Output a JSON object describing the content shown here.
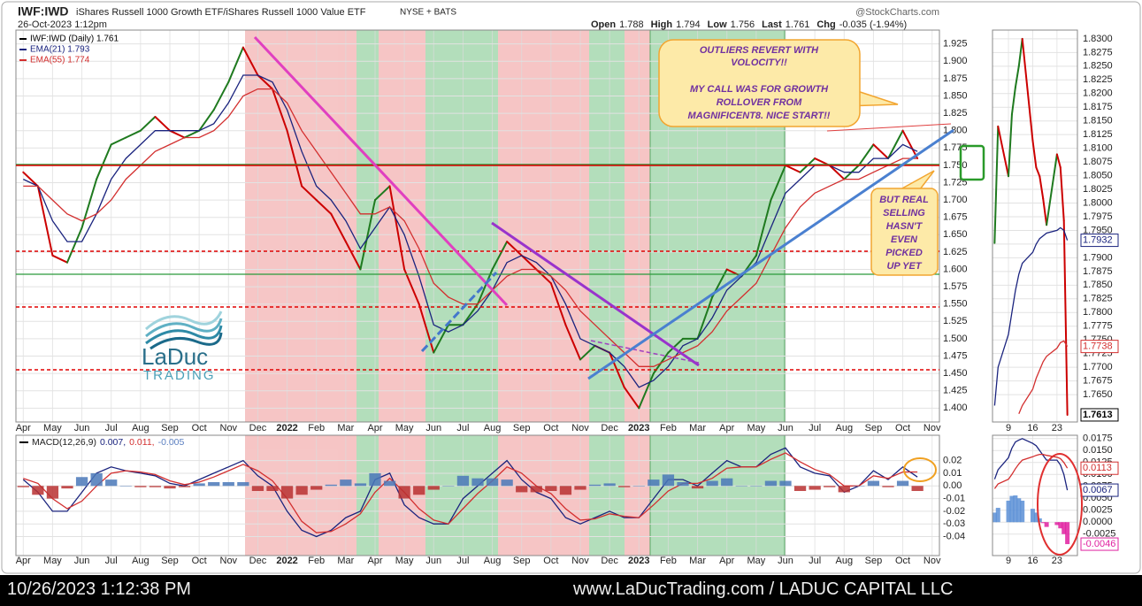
{
  "header": {
    "symbol": "IWF:IWD",
    "name": "iShares Russell 1000 Growth ETF/iShares Russell 1000 Value ETF",
    "exchange": "NYSE + BATS",
    "source": "@StockCharts.com",
    "date": "26-Oct-2023 1:12pm",
    "quote": [
      {
        "label": "Open",
        "value": "1.788"
      },
      {
        "label": "High",
        "value": "1.794"
      },
      {
        "label": "Low",
        "value": "1.756"
      },
      {
        "label": "Last",
        "value": "1.761"
      },
      {
        "label": "Chg",
        "value": "-0.035 (-1.94%)"
      }
    ]
  },
  "logo": {
    "name": "LaDuc",
    "tagline": "TRADING"
  },
  "annotations": [
    {
      "lines": [
        "OUTLIERS REVERT WITH",
        "VOLOCITY!!",
        "MY CALL WAS FOR GROWTH",
        "ROLLOVER FROM",
        "MAGNIFICENT8. NICE START!!"
      ]
    },
    {
      "lines": [
        "BUT REAL",
        "SELLING",
        "HASN'T",
        "EVEN",
        "PICKED",
        "UP YET"
      ]
    }
  ],
  "footer": {
    "timestamp": "10/26/2023 1:12:38 PM",
    "site": "www.LaDucTrading.com / LADUC CAPITAL LLC"
  },
  "chart_data": [
    {
      "type": "line",
      "grid": true,
      "categories": [
        "Apr",
        null,
        "May",
        null,
        "Jun",
        null,
        "Jul",
        null,
        "Aug",
        null,
        "Sep",
        null,
        "Oct",
        null,
        "Nov",
        null,
        "Dec",
        null,
        "2022",
        null,
        "Feb",
        null,
        "Mar",
        null,
        "Apr",
        null,
        "May",
        null,
        "Jun",
        null,
        "Jul",
        null,
        "Aug",
        null,
        "Sep",
        null,
        "Oct",
        null,
        "Nov",
        null,
        "Dec",
        null,
        "2023",
        null,
        "Feb",
        null,
        "Mar",
        null,
        "Apr",
        null,
        "May",
        null,
        "Jun",
        null,
        "Jul",
        null,
        "Aug",
        null,
        "Sep",
        null,
        "Oct",
        null,
        "Nov"
      ],
      "series": [
        {
          "name": "IWF:IWD (Daily) 1.761",
          "color": "#000000",
          "up_color": "#1f7a1f",
          "down_color": "#cc0000",
          "values": [
            1.74,
            1.72,
            1.62,
            1.61,
            1.66,
            1.73,
            1.78,
            1.79,
            1.8,
            1.82,
            1.8,
            1.79,
            1.8,
            1.83,
            1.87,
            1.92,
            1.88,
            1.86,
            1.8,
            1.72,
            1.7,
            1.68,
            1.64,
            1.6,
            1.7,
            1.72,
            1.6,
            1.55,
            1.48,
            1.52,
            1.52,
            1.55,
            1.6,
            1.64,
            1.62,
            1.6,
            1.58,
            1.52,
            1.47,
            1.49,
            1.48,
            1.43,
            1.4,
            1.45,
            1.48,
            1.5,
            1.5,
            1.56,
            1.6,
            1.59,
            1.62,
            1.7,
            1.75,
            1.74,
            1.76,
            1.75,
            1.73,
            1.75,
            1.78,
            1.76,
            1.8,
            1.76,
            null
          ]
        },
        {
          "name": "EMA(21) 1.793",
          "color": "#1a237e",
          "values": [
            1.73,
            1.72,
            1.67,
            1.64,
            1.64,
            1.68,
            1.73,
            1.76,
            1.78,
            1.8,
            1.8,
            1.8,
            1.8,
            1.81,
            1.84,
            1.88,
            1.88,
            1.87,
            1.83,
            1.77,
            1.72,
            1.7,
            1.67,
            1.63,
            1.66,
            1.69,
            1.65,
            1.59,
            1.52,
            1.51,
            1.52,
            1.54,
            1.57,
            1.61,
            1.62,
            1.61,
            1.59,
            1.55,
            1.5,
            1.49,
            1.48,
            1.46,
            1.43,
            1.44,
            1.46,
            1.49,
            1.5,
            1.53,
            1.57,
            1.59,
            1.61,
            1.66,
            1.71,
            1.73,
            1.75,
            1.75,
            1.74,
            1.74,
            1.76,
            1.76,
            1.78,
            1.77,
            null
          ]
        },
        {
          "name": "EMA(55) 1.774",
          "color": "#d32f2f",
          "values": [
            1.72,
            1.72,
            1.7,
            1.68,
            1.67,
            1.68,
            1.7,
            1.73,
            1.75,
            1.77,
            1.78,
            1.79,
            1.79,
            1.8,
            1.82,
            1.85,
            1.86,
            1.86,
            1.84,
            1.8,
            1.77,
            1.74,
            1.71,
            1.68,
            1.68,
            1.69,
            1.67,
            1.63,
            1.58,
            1.56,
            1.55,
            1.55,
            1.57,
            1.59,
            1.6,
            1.6,
            1.59,
            1.57,
            1.54,
            1.52,
            1.5,
            1.48,
            1.46,
            1.46,
            1.47,
            1.48,
            1.49,
            1.51,
            1.54,
            1.56,
            1.58,
            1.62,
            1.66,
            1.69,
            1.71,
            1.72,
            1.73,
            1.73,
            1.74,
            1.75,
            1.76,
            1.76,
            null
          ]
        }
      ],
      "ylim": [
        1.38,
        1.945
      ],
      "yticks": [
        1.925,
        {
          "value": 1.9,
          "label": "1.900"
        },
        1.875,
        {
          "value": 1.85,
          "label": "1.850"
        },
        1.825,
        {
          "value": 1.8,
          "label": "1.800"
        },
        1.775,
        {
          "value": 1.75,
          "label": "1.750"
        },
        1.725,
        {
          "value": 1.7,
          "label": "1.700"
        },
        1.675,
        {
          "value": 1.65,
          "label": "1.650"
        },
        1.625,
        {
          "value": 1.6,
          "label": "1.600"
        },
        1.575,
        {
          "value": 1.55,
          "label": "1.550"
        },
        1.525,
        {
          "value": 1.5,
          "label": "1.500"
        },
        1.475,
        {
          "value": 1.45,
          "label": "1.450"
        },
        1.425,
        {
          "value": 1.4,
          "label": "1.400"
        }
      ]
    },
    {
      "type": "line",
      "grid": true,
      "title": "MACD(12,26,9)",
      "series": [
        {
          "name": "0.007,",
          "color": "#1a237e",
          "values": [
            0.005,
            -0.005,
            -0.02,
            -0.02,
            -0.005,
            0.01,
            0.015,
            0.012,
            0.01,
            0.008,
            0.002,
            0.0,
            0.005,
            0.01,
            0.015,
            0.02,
            0.008,
            0.0,
            -0.02,
            -0.035,
            -0.04,
            -0.035,
            -0.025,
            -0.02,
            0.005,
            0.01,
            -0.015,
            -0.025,
            -0.03,
            -0.03,
            -0.01,
            0.0,
            0.01,
            0.02,
            0.005,
            -0.005,
            -0.01,
            -0.025,
            -0.03,
            -0.025,
            -0.02,
            -0.025,
            -0.025,
            -0.01,
            0.005,
            0.005,
            0.0,
            0.01,
            0.02,
            0.015,
            0.015,
            0.025,
            0.03,
            0.015,
            0.01,
            0.008,
            -0.005,
            0.0,
            0.012,
            0.005,
            0.015,
            0.007,
            null
          ]
        },
        {
          "name": "0.011,",
          "color": "#d32f2f",
          "values": [
            0.006,
            0.002,
            -0.01,
            -0.018,
            -0.012,
            0.0,
            0.01,
            0.012,
            0.011,
            0.009,
            0.004,
            0.001,
            0.003,
            0.007,
            0.012,
            0.017,
            0.012,
            0.004,
            -0.01,
            -0.028,
            -0.037,
            -0.036,
            -0.03,
            -0.022,
            -0.005,
            0.006,
            -0.005,
            -0.018,
            -0.027,
            -0.03,
            -0.018,
            -0.006,
            0.004,
            0.015,
            0.01,
            0.0,
            -0.006,
            -0.018,
            -0.027,
            -0.026,
            -0.022,
            -0.024,
            -0.025,
            -0.015,
            -0.004,
            0.002,
            0.002,
            0.006,
            0.014,
            0.015,
            0.015,
            0.021,
            0.026,
            0.019,
            0.013,
            0.009,
            0.0,
            0.0,
            0.008,
            0.006,
            0.011,
            0.011,
            null
          ]
        },
        {
          "name": "-0.005",
          "color": "#5b7fc0",
          "style": "histogram",
          "pos_color": "#4a78b8",
          "neg_color": "#b83030",
          "values": [
            -0.001,
            -0.007,
            -0.01,
            -0.002,
            0.007,
            0.01,
            0.005,
            0.0,
            -0.001,
            -0.001,
            -0.002,
            -0.001,
            0.002,
            0.003,
            0.003,
            0.003,
            -0.004,
            -0.004,
            -0.01,
            -0.007,
            -0.003,
            0.001,
            0.005,
            0.002,
            0.01,
            0.004,
            -0.01,
            -0.007,
            -0.003,
            0.0,
            0.008,
            0.006,
            0.006,
            0.005,
            -0.005,
            -0.005,
            -0.004,
            -0.007,
            -0.003,
            0.001,
            0.002,
            -0.001,
            0.0,
            0.005,
            0.009,
            0.003,
            -0.002,
            0.004,
            0.006,
            0.0,
            0.0,
            0.004,
            0.004,
            -0.004,
            -0.003,
            -0.001,
            -0.005,
            0.0,
            0.004,
            -0.001,
            0.004,
            -0.004,
            null
          ]
        }
      ],
      "ylim": [
        -0.055,
        0.04
      ],
      "yticks": [
        0.02,
        0.01,
        {
          "value": 0,
          "label": "0.00"
        },
        -0.01,
        -0.02,
        -0.03,
        -0.04
      ]
    },
    {
      "type": "line",
      "x": [
        5,
        6,
        9,
        10,
        11,
        12,
        13,
        16,
        17,
        18,
        19,
        20,
        23,
        24,
        25,
        26
      ],
      "xlim": [
        4.4,
        28.9
      ],
      "xticks": [
        9,
        16,
        23
      ],
      "series": [
        {
          "color": "#000000",
          "up_color": "#1f7a1f",
          "down_color": "#cc0000",
          "values": [
            1.7927,
            1.814,
            1.8049,
            1.8162,
            1.8211,
            1.825,
            1.83,
            1.8114,
            1.8065,
            1.8049,
            1.8008,
            1.796,
            1.8089,
            1.8065,
            1.7968,
            1.7613
          ]
        },
        {
          "color": "#1a237e",
          "values": [
            1.763,
            1.77,
            1.776,
            1.78,
            1.784,
            1.787,
            1.789,
            1.791,
            1.7925,
            1.7935,
            1.794,
            1.7945,
            1.795,
            1.7955,
            1.795,
            1.7932
          ]
        },
        {
          "color": "#d32f2f",
          "values": [
            null,
            null,
            null,
            null,
            null,
            1.7615,
            1.763,
            1.766,
            1.768,
            1.7695,
            1.771,
            1.772,
            1.7735,
            1.7745,
            1.7748,
            1.7738
          ]
        }
      ],
      "ylim": [
        1.76,
        1.8316
      ],
      "yticks": [
        {
          "value": 1.83,
          "label": "1.8300"
        },
        1.8275,
        {
          "value": 1.825,
          "label": "1.8250"
        },
        1.8225,
        {
          "value": 1.82,
          "label": "1.8200"
        },
        1.8175,
        {
          "value": 1.815,
          "label": "1.8150"
        },
        1.8125,
        {
          "value": 1.81,
          "label": "1.8100"
        },
        1.8075,
        {
          "value": 1.805,
          "label": "1.8050"
        },
        1.8025,
        {
          "value": 1.8,
          "label": "1.8000"
        },
        1.7975,
        {
          "value": 1.795,
          "label": "1.7950"
        },
        1.7925,
        {
          "value": 1.79,
          "label": "1.7900"
        },
        1.7875,
        {
          "value": 1.785,
          "label": "1.7850"
        },
        1.7825,
        {
          "value": 1.78,
          "label": "1.7800"
        },
        1.7775,
        {
          "value": 1.775,
          "label": "1.7750"
        },
        1.7725,
        {
          "value": 1.77,
          "label": "1.7700"
        },
        1.7675,
        {
          "value": 1.765,
          "label": "1.7650"
        }
      ]
    },
    {
      "type": "line",
      "series": [
        {
          "color": "#1a237e",
          "values": [
            0.009,
            0.011,
            0.0135,
            0.0155,
            0.0168,
            0.0172,
            0.0175,
            0.0165,
            0.016,
            0.015,
            0.014,
            0.013,
            0.013,
            0.012,
            0.01,
            0.0067
          ]
        },
        {
          "color": "#d32f2f",
          "values": [
            0.007,
            0.008,
            0.009,
            0.01,
            0.0112,
            0.0122,
            0.013,
            0.0137,
            0.014,
            0.0142,
            0.0142,
            0.014,
            0.0136,
            0.0133,
            0.0125,
            0.0113
          ]
        },
        {
          "color": "#e020a0",
          "style": "histogram",
          "pos_color": "#5b8fd6",
          "neg_color": "#e020a0",
          "values": [
            0.002,
            0.003,
            0.0045,
            0.0055,
            0.0056,
            0.005,
            0.0045,
            0.0028,
            0.002,
            0.0008,
            -0.0002,
            -0.001,
            -0.0006,
            -0.0013,
            -0.0025,
            -0.0046
          ]
        }
      ],
      "ylim": [
        -0.007,
        0.0182
      ],
      "yticks": [
        0.0175,
        {
          "value": 0.015,
          "label": "0.0150"
        },
        0.0125,
        {
          "value": 0.01,
          "label": "0.0100"
        },
        0.0075,
        {
          "value": 0.005,
          "label": "0.0050"
        },
        0.0025,
        {
          "value": 0,
          "label": "0.0000"
        },
        -0.0025
      ]
    }
  ]
}
